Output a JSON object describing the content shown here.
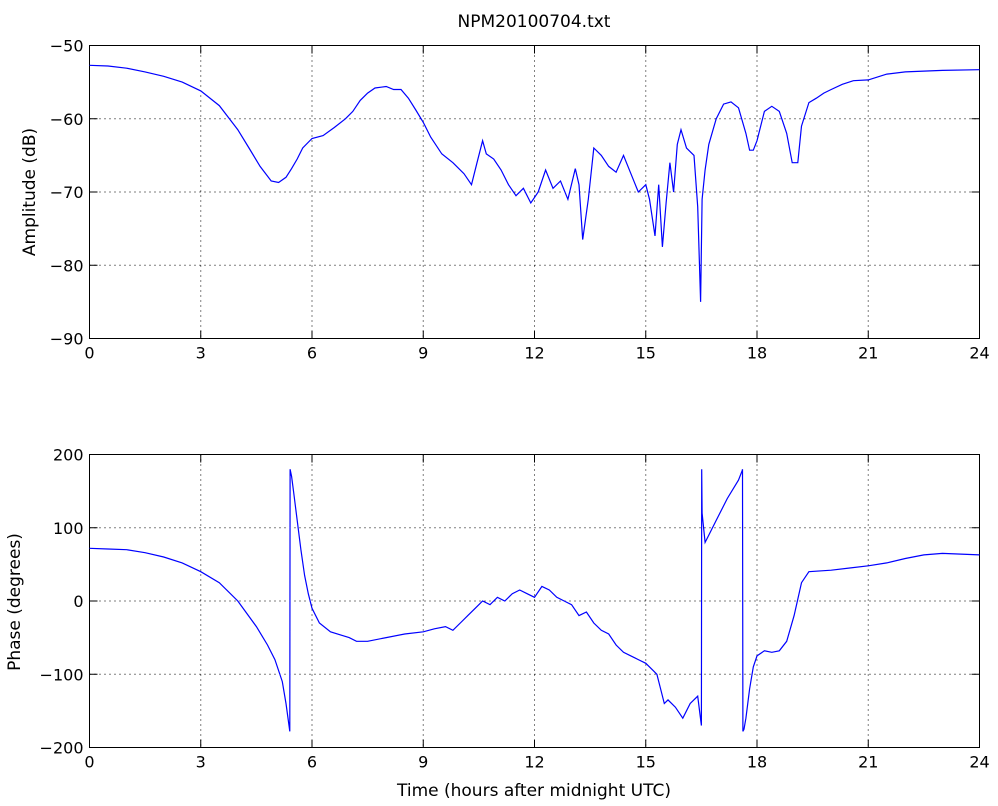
{
  "chart_data": [
    {
      "type": "line",
      "title": "NPM20100704.txt",
      "xlabel": "",
      "ylabel": "Amplitude (dB)",
      "xlim": [
        0,
        24
      ],
      "ylim": [
        -90,
        -50
      ],
      "xticks": [
        0,
        3,
        6,
        9,
        12,
        15,
        18,
        21,
        24
      ],
      "yticks": [
        -90,
        -80,
        -70,
        -60,
        -50
      ],
      "grid": true,
      "color": "#0000ff",
      "series": [
        {
          "x": [
            0,
            0.5,
            1,
            1.5,
            2,
            2.5,
            3,
            3.5,
            4,
            4.3,
            4.6,
            4.9,
            5.1,
            5.3,
            5.45,
            5.6,
            5.75,
            6,
            6.3,
            6.6,
            6.9,
            7.1,
            7.3,
            7.5,
            7.7,
            8,
            8.2,
            8.4,
            8.6,
            8.8,
            9,
            9.2,
            9.5,
            9.8,
            10.1,
            10.3,
            10.45,
            10.6,
            10.7,
            10.9,
            11.1,
            11.3,
            11.5,
            11.7,
            11.9,
            12.1,
            12.3,
            12.5,
            12.7,
            12.9,
            13.1,
            13.2,
            13.3,
            13.45,
            13.6,
            13.8,
            14,
            14.2,
            14.4,
            14.6,
            14.8,
            15,
            15.1,
            15.25,
            15.35,
            15.45,
            15.55,
            15.65,
            15.75,
            15.85,
            15.95,
            16.1,
            16.3,
            16.4,
            16.48,
            16.52,
            16.6,
            16.7,
            16.9,
            17.1,
            17.3,
            17.5,
            17.7,
            17.8,
            17.9,
            18,
            18.2,
            18.4,
            18.6,
            18.8,
            18.95,
            19.1,
            19.2,
            19.4,
            19.6,
            19.8,
            20,
            20.3,
            20.6,
            21,
            21.5,
            22,
            23,
            24
          ],
          "y": [
            -52.7,
            -52.8,
            -53.1,
            -53.6,
            -54.2,
            -55,
            -56.2,
            -58.2,
            -61.5,
            -64,
            -66.5,
            -68.5,
            -68.7,
            -68,
            -66.8,
            -65.5,
            -64,
            -62.7,
            -62.3,
            -61.2,
            -60,
            -59,
            -57.5,
            -56.5,
            -55.8,
            -55.6,
            -56,
            -56,
            -57.2,
            -58.8,
            -60.5,
            -62.5,
            -64.8,
            -66,
            -67.5,
            -69,
            -66,
            -63,
            -64.8,
            -65.5,
            -67,
            -69,
            -70.5,
            -69.5,
            -71.5,
            -70,
            -67,
            -69.5,
            -68.5,
            -71,
            -66.8,
            -69,
            -76.5,
            -71,
            -64,
            -65,
            -66.5,
            -67.3,
            -65,
            -67.5,
            -70,
            -69,
            -71,
            -76,
            -69,
            -77.5,
            -71.5,
            -66,
            -70,
            -63.5,
            -61.5,
            -64,
            -65,
            -72,
            -85,
            -71,
            -67,
            -63.5,
            -60,
            -58,
            -57.7,
            -58.5,
            -62,
            -64.3,
            -64.3,
            -63,
            -59,
            -58.3,
            -59,
            -62,
            -66,
            -66,
            -61,
            -57.8,
            -57.2,
            -56.5,
            -56,
            -55.3,
            -54.8,
            -54.7,
            -53.9,
            -53.6,
            -53.4,
            -53.3
          ]
        }
      ]
    },
    {
      "type": "line",
      "title": "",
      "xlabel": "Time (hours after midnight UTC)",
      "ylabel": "Phase (degrees)",
      "xlim": [
        0,
        24
      ],
      "ylim": [
        -200,
        200
      ],
      "xticks": [
        0,
        3,
        6,
        9,
        12,
        15,
        18,
        21,
        24
      ],
      "yticks": [
        -200,
        -100,
        0,
        100,
        200
      ],
      "grid": true,
      "color": "#0000ff",
      "series": [
        {
          "x": [
            0,
            0.5,
            1,
            1.5,
            2,
            2.5,
            3,
            3.5,
            4,
            4.5,
            4.8,
            5,
            5.2,
            5.3,
            5.38,
            5.4,
            5.41,
            5.45,
            5.5,
            5.6,
            5.7,
            5.8,
            5.9,
            6,
            6.2,
            6.5,
            7,
            7.2,
            7.5,
            8,
            8.5,
            9,
            9.3,
            9.6,
            9.8,
            10,
            10.2,
            10.4,
            10.6,
            10.8,
            11,
            11.2,
            11.4,
            11.6,
            11.8,
            12,
            12.2,
            12.4,
            12.6,
            12.8,
            13,
            13.2,
            13.4,
            13.6,
            13.8,
            14,
            14.2,
            14.4,
            14.6,
            14.8,
            15,
            15.2,
            15.3,
            15.4,
            15.5,
            15.6,
            15.8,
            16,
            16.2,
            16.4,
            16.5,
            16.51,
            16.52,
            16.6,
            16.7,
            16.9,
            17.2,
            17.5,
            17.6,
            17.61,
            17.62,
            17.65,
            17.7,
            17.8,
            17.9,
            18,
            18.2,
            18.4,
            18.6,
            18.8,
            19,
            19.2,
            19.4,
            20,
            20.5,
            21,
            21.5,
            22,
            22.5,
            23,
            24
          ],
          "y": [
            72,
            71,
            70,
            66,
            60,
            52,
            40,
            25,
            0,
            -35,
            -60,
            -80,
            -110,
            -140,
            -170,
            -178,
            180,
            170,
            150,
            110,
            70,
            35,
            10,
            -10,
            -30,
            -42,
            -50,
            -55,
            -55,
            -50,
            -45,
            -42,
            -38,
            -35,
            -40,
            -30,
            -20,
            -10,
            0,
            -5,
            5,
            0,
            10,
            15,
            10,
            5,
            20,
            15,
            5,
            0,
            -5,
            -20,
            -15,
            -30,
            -40,
            -45,
            -60,
            -70,
            -75,
            -80,
            -85,
            -95,
            -100,
            -120,
            -140,
            -135,
            -145,
            -160,
            -140,
            -130,
            -170,
            180,
            120,
            80,
            90,
            110,
            140,
            165,
            178,
            180,
            -178,
            -175,
            -160,
            -120,
            -90,
            -75,
            -68,
            -70,
            -68,
            -55,
            -20,
            25,
            40,
            42,
            45,
            48,
            52,
            58,
            63,
            65,
            63
          ]
        }
      ]
    }
  ]
}
